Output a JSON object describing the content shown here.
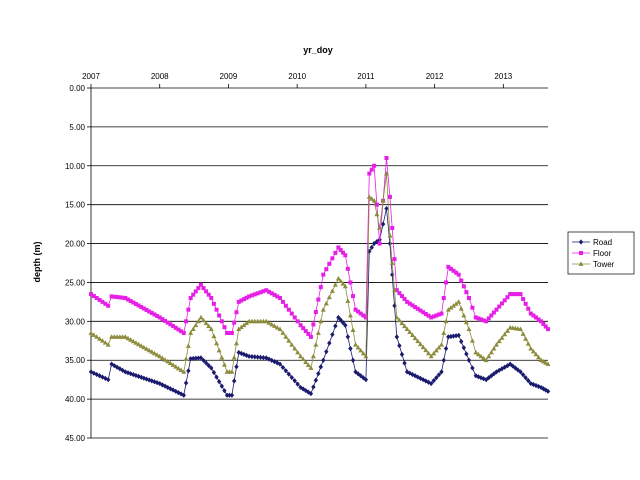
{
  "chart_data": {
    "type": "line",
    "title": "",
    "xlabel": "yr_doy",
    "ylabel": "depth (m)",
    "x_axis_position": "top",
    "y_inverted": true,
    "ylim": [
      0,
      45
    ],
    "xlim": [
      2007.0,
      2013.65
    ],
    "grid": true,
    "legend_position": "right",
    "year_labels": [
      "2007",
      "2008",
      "2009",
      "2010",
      "2011",
      "2012",
      "2013"
    ],
    "year_values": [
      2007,
      2008,
      2009,
      2010,
      2011,
      2012,
      2013
    ],
    "ytick_labels": [
      "0.00",
      "5.00",
      "10.00",
      "15.00",
      "20.00",
      "25.00",
      "30.00",
      "35.00",
      "40.00",
      "45.00"
    ],
    "ytick_values": [
      0,
      5,
      10,
      15,
      20,
      25,
      30,
      35,
      40,
      45
    ],
    "anchors_x": [
      2007.0,
      2007.25,
      2007.3,
      2007.5,
      2008.0,
      2008.35,
      2008.45,
      2008.6,
      2008.75,
      2008.98,
      2009.05,
      2009.15,
      2009.3,
      2009.55,
      2009.75,
      2010.05,
      2010.2,
      2010.38,
      2010.6,
      2010.7,
      2010.85,
      2011.0,
      2011.05,
      2011.12,
      2011.2,
      2011.3,
      2011.35,
      2011.45,
      2011.6,
      2011.95,
      2012.1,
      2012.2,
      2012.35,
      2012.5,
      2012.6,
      2012.75,
      2012.9,
      2013.1,
      2013.25,
      2013.4,
      2013.55,
      2013.65
    ],
    "series": [
      {
        "name": "Road",
        "color": "#1a1a6e",
        "marker": "diamond",
        "values": [
          36.5,
          37.5,
          35.5,
          36.5,
          38.0,
          39.5,
          34.8,
          34.7,
          36.0,
          39.5,
          39.5,
          34.0,
          34.5,
          34.7,
          35.5,
          38.5,
          39.3,
          35.0,
          29.5,
          30.5,
          36.5,
          37.5,
          21.0,
          20.0,
          19.5,
          15.5,
          20.0,
          32.0,
          36.5,
          38.0,
          36.5,
          32.0,
          31.8,
          35.0,
          37.0,
          37.5,
          36.5,
          35.5,
          36.5,
          38.0,
          38.5,
          39.0
        ]
      },
      {
        "name": "Floor",
        "color": "#e61ee6",
        "marker": "square",
        "values": [
          26.5,
          28.0,
          26.8,
          27.0,
          29.5,
          31.5,
          27.0,
          25.3,
          27.0,
          31.5,
          31.5,
          27.5,
          26.8,
          26.0,
          27.0,
          30.5,
          32.0,
          24.0,
          20.5,
          21.5,
          28.5,
          29.5,
          11.0,
          10.0,
          20.0,
          9.0,
          14.0,
          26.0,
          27.5,
          29.5,
          29.0,
          23.0,
          24.0,
          27.0,
          29.5,
          30.0,
          28.5,
          26.5,
          26.5,
          29.0,
          30.0,
          31.0
        ]
      },
      {
        "name": "Tower",
        "color": "#8c8c3c",
        "marker": "triangle",
        "values": [
          31.5,
          33.0,
          32.0,
          32.0,
          34.5,
          36.5,
          31.5,
          29.5,
          31.0,
          36.5,
          36.5,
          31.0,
          30.0,
          30.0,
          31.0,
          34.5,
          36.0,
          28.5,
          24.5,
          25.5,
          33.0,
          34.5,
          14.0,
          14.5,
          18.0,
          11.0,
          19.0,
          29.5,
          31.0,
          34.5,
          33.0,
          28.5,
          27.5,
          31.0,
          34.0,
          35.0,
          33.0,
          30.8,
          31.0,
          33.5,
          35.0,
          35.5
        ]
      }
    ]
  }
}
